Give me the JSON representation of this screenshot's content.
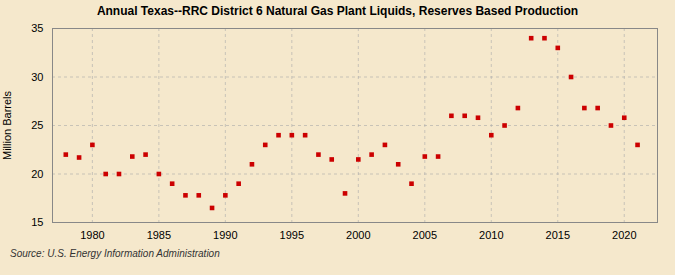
{
  "chart_data": {
    "type": "scatter",
    "title": "Annual Texas--RRC District 6 Natural Gas Plant Liquids, Reserves Based Production",
    "ylabel": "Million Barrels",
    "annotation": "Source: U.S. Energy Information Administration",
    "x": [
      1978,
      1979,
      1980,
      1981,
      1982,
      1983,
      1984,
      1985,
      1986,
      1987,
      1988,
      1989,
      1990,
      1991,
      1992,
      1993,
      1994,
      1995,
      1996,
      1997,
      1998,
      1999,
      2000,
      2001,
      2002,
      2003,
      2004,
      2005,
      2006,
      2007,
      2008,
      2009,
      2010,
      2011,
      2012,
      2013,
      2014,
      2015,
      2016,
      2017,
      2018,
      2019,
      2020,
      2021
    ],
    "values": [
      22.0,
      21.7,
      23.0,
      20.0,
      20.0,
      21.8,
      22.0,
      20.0,
      19.0,
      17.8,
      17.8,
      16.5,
      17.8,
      19.0,
      21.0,
      23.0,
      24.0,
      24.0,
      24.0,
      22.0,
      21.5,
      18.0,
      21.5,
      22.0,
      23.0,
      21.0,
      19.0,
      21.8,
      21.8,
      26.0,
      26.0,
      25.8,
      24.0,
      25.0,
      26.8,
      34.0,
      34.0,
      33.0,
      30.0,
      26.8,
      26.8,
      25.0,
      25.8,
      23.0
    ],
    "color": "#cc0000",
    "marker": "square",
    "xlim": [
      1977,
      2022.5
    ],
    "ylim": [
      15,
      35
    ],
    "xticks": [
      1980,
      1985,
      1990,
      1995,
      2000,
      2005,
      2010,
      2015,
      2020
    ],
    "yticks": [
      15,
      20,
      25,
      30,
      35
    ],
    "grid": true
  }
}
